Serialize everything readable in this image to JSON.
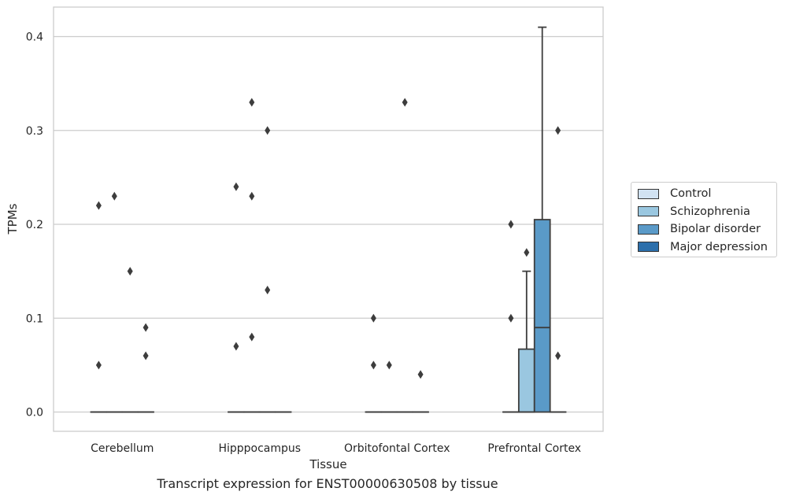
{
  "chart_data": {
    "type": "boxplot",
    "caption": "Transcript expression for ENST00000630508 by tissue",
    "xlabel": "Tissue",
    "ylabel": "TPMs",
    "ylim": [
      -0.02,
      0.43
    ],
    "yticks": [
      "0.0",
      "0.1",
      "0.2",
      "0.3",
      "0.4"
    ],
    "grid": true,
    "legend_position": "right",
    "categories": [
      "Cerebellum",
      "Hipppocampus",
      "Orbitofontal Cortex",
      "Prefrontal Cortex"
    ],
    "series": [
      {
        "name": "Control",
        "color": "#d1e2f2",
        "boxes": [
          {
            "q1": 0,
            "median": 0,
            "q3": 0,
            "whisker_low": 0,
            "whisker_high": 0,
            "outliers": [
              0.22,
              0.05
            ]
          },
          {
            "q1": 0,
            "median": 0,
            "q3": 0,
            "whisker_low": 0,
            "whisker_high": 0,
            "outliers": [
              0.24,
              0.07
            ]
          },
          {
            "q1": 0,
            "median": 0,
            "q3": 0,
            "whisker_low": 0,
            "whisker_high": 0,
            "outliers": [
              0.1,
              0.05
            ]
          },
          {
            "q1": 0,
            "median": 0,
            "q3": 0,
            "whisker_low": 0,
            "whisker_high": 0,
            "outliers": [
              0.2,
              0.1
            ]
          }
        ]
      },
      {
        "name": "Schizophrenia",
        "color": "#9ac7e0",
        "boxes": [
          {
            "q1": 0,
            "median": 0,
            "q3": 0,
            "whisker_low": 0,
            "whisker_high": 0,
            "outliers": [
              0.23
            ]
          },
          {
            "q1": 0,
            "median": 0,
            "q3": 0,
            "whisker_low": 0,
            "whisker_high": 0,
            "outliers": [
              0.33,
              0.23,
              0.08
            ]
          },
          {
            "q1": 0,
            "median": 0,
            "q3": 0,
            "whisker_low": 0,
            "whisker_high": 0,
            "outliers": [
              0.05
            ]
          },
          {
            "q1": 0,
            "median": 0,
            "q3": 0.067,
            "whisker_low": 0,
            "whisker_high": 0.15,
            "outliers": [
              0.17
            ]
          }
        ]
      },
      {
        "name": "Bipolar disorder",
        "color": "#5a9ac8",
        "boxes": [
          {
            "q1": 0,
            "median": 0,
            "q3": 0,
            "whisker_low": 0,
            "whisker_high": 0,
            "outliers": [
              0.15
            ]
          },
          {
            "q1": 0,
            "median": 0,
            "q3": 0,
            "whisker_low": 0,
            "whisker_high": 0,
            "outliers": [
              0.3,
              0.13
            ]
          },
          {
            "q1": 0,
            "median": 0,
            "q3": 0,
            "whisker_low": 0,
            "whisker_high": 0,
            "outliers": [
              0.33
            ]
          },
          {
            "q1": 0,
            "median": 0.09,
            "q3": 0.205,
            "whisker_low": 0,
            "whisker_high": 0.41,
            "outliers": []
          }
        ]
      },
      {
        "name": "Major depression",
        "color": "#2c6fab",
        "boxes": [
          {
            "q1": 0,
            "median": 0,
            "q3": 0,
            "whisker_low": 0,
            "whisker_high": 0,
            "outliers": [
              0.09,
              0.06
            ]
          },
          {
            "q1": 0,
            "median": 0,
            "q3": 0,
            "whisker_low": 0,
            "whisker_high": 0,
            "outliers": []
          },
          {
            "q1": 0,
            "median": 0,
            "q3": 0,
            "whisker_low": 0,
            "whisker_high": 0,
            "outliers": [
              0.04
            ]
          },
          {
            "q1": 0,
            "median": 0,
            "q3": 0,
            "whisker_low": 0,
            "whisker_high": 0,
            "outliers": [
              0.3,
              0.06
            ]
          }
        ]
      }
    ]
  }
}
